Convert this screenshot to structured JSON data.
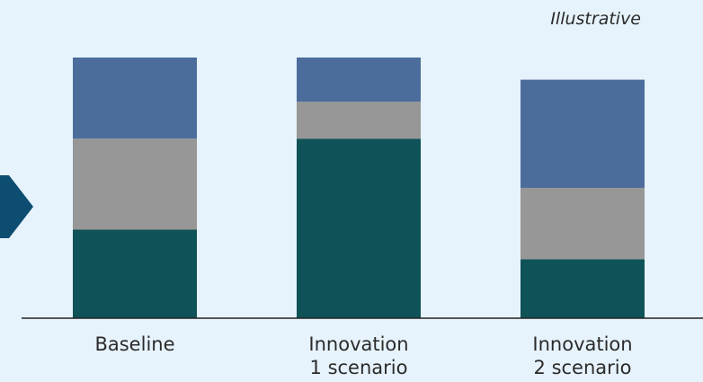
{
  "annotation": "Illustrative",
  "colors": {
    "background": "#e6f3fc",
    "arrow": "#0d4d72",
    "axis": "#222222"
  },
  "chart_data": {
    "type": "bar",
    "stacked": true,
    "categories": [
      [
        "Baseline"
      ],
      [
        "Innovation",
        "1 scenario"
      ],
      [
        "Innovation",
        "2 scenario"
      ]
    ],
    "series": [
      {
        "color": "#0f5257",
        "values": [
          36,
          73,
          24
        ]
      },
      {
        "color": "#979797",
        "values": [
          37,
          15,
          29
        ]
      },
      {
        "color": "#4c6d9c",
        "values": [
          33,
          18,
          44
        ]
      }
    ],
    "xlabel": "",
    "ylabel": "",
    "ylim": [
      0,
      106
    ],
    "legend": "none",
    "grid": false
  }
}
